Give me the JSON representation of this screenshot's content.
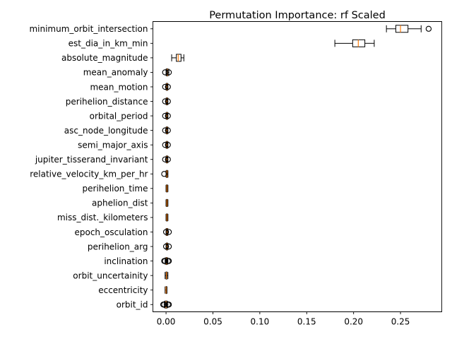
{
  "chart_data": {
    "type": "box",
    "orientation": "horizontal",
    "title": "Permutation Importance: rf Scaled",
    "xlabel": "",
    "ylabel": "",
    "xlim": [
      -0.014,
      0.294
    ],
    "xticks": [
      0.0,
      0.05,
      0.1,
      0.15,
      0.2,
      0.25
    ],
    "xtick_labels": [
      "0.00",
      "0.05",
      "0.10",
      "0.15",
      "0.20",
      "0.25"
    ],
    "grid": false,
    "series": [
      {
        "feature": "minimum_orbit_intersection",
        "whislo": 0.235,
        "q1": 0.245,
        "med": 0.25,
        "q3": 0.258,
        "whishi": 0.272,
        "fliers": [
          0.28
        ]
      },
      {
        "feature": "est_dia_in_km_min",
        "whislo": 0.18,
        "q1": 0.199,
        "med": 0.205,
        "q3": 0.212,
        "whishi": 0.222,
        "fliers": []
      },
      {
        "feature": "absolute_magnitude",
        "whislo": 0.006,
        "q1": 0.011,
        "med": 0.013,
        "q3": 0.016,
        "whishi": 0.019,
        "fliers": []
      },
      {
        "feature": "mean_anomaly",
        "whislo": 0.0,
        "q1": 0.0005,
        "med": 0.0015,
        "q3": 0.002,
        "whishi": 0.003,
        "fliers": [
          -0.001,
          0.003
        ]
      },
      {
        "feature": "mean_motion",
        "whislo": 0.0,
        "q1": 0.0005,
        "med": 0.001,
        "q3": 0.0015,
        "whishi": 0.002,
        "fliers": [
          -0.001,
          0.002
        ]
      },
      {
        "feature": "perihelion_distance",
        "whislo": 0.0,
        "q1": 0.0005,
        "med": 0.001,
        "q3": 0.0015,
        "whishi": 0.002,
        "fliers": [
          -0.001,
          0.002
        ]
      },
      {
        "feature": "orbital_period",
        "whislo": 0.0,
        "q1": 0.0005,
        "med": 0.001,
        "q3": 0.0015,
        "whishi": 0.002,
        "fliers": [
          -0.001,
          0.002
        ]
      },
      {
        "feature": "asc_node_longitude",
        "whislo": 0.0,
        "q1": 0.0005,
        "med": 0.001,
        "q3": 0.0015,
        "whishi": 0.002,
        "fliers": [
          -0.001,
          0.002
        ]
      },
      {
        "feature": "semi_major_axis",
        "whislo": 0.0,
        "q1": 0.0005,
        "med": 0.001,
        "q3": 0.0015,
        "whishi": 0.002,
        "fliers": [
          -0.001,
          0.002
        ]
      },
      {
        "feature": "jupiter_tisserand_invariant",
        "whislo": 0.0,
        "q1": 0.0005,
        "med": 0.001,
        "q3": 0.0015,
        "whishi": 0.002,
        "fliers": [
          -0.001,
          0.002
        ]
      },
      {
        "feature": "relative_velocity_km_per_hr",
        "whislo": 0.0,
        "q1": 0.0005,
        "med": 0.001,
        "q3": 0.0015,
        "whishi": 0.002,
        "fliers": [
          -0.002
        ]
      },
      {
        "feature": "perihelion_time",
        "whislo": 0.0,
        "q1": 0.0005,
        "med": 0.001,
        "q3": 0.0015,
        "whishi": 0.002,
        "fliers": []
      },
      {
        "feature": "aphelion_dist",
        "whislo": 0.0,
        "q1": 0.0005,
        "med": 0.001,
        "q3": 0.0015,
        "whishi": 0.002,
        "fliers": []
      },
      {
        "feature": "miss_dist._kilometers",
        "whislo": 0.0,
        "q1": 0.0005,
        "med": 0.001,
        "q3": 0.0015,
        "whishi": 0.002,
        "fliers": []
      },
      {
        "feature": "epoch_osculation",
        "whislo": 0.0,
        "q1": 0.0005,
        "med": 0.001,
        "q3": 0.0015,
        "whishi": 0.002,
        "fliers": [
          0.0,
          0.003
        ]
      },
      {
        "feature": "perihelion_arg",
        "whislo": 0.0,
        "q1": 0.0005,
        "med": 0.001,
        "q3": 0.0015,
        "whishi": 0.002,
        "fliers": [
          0.0,
          0.003
        ]
      },
      {
        "feature": "inclination",
        "whislo": -0.001,
        "q1": 0.0,
        "med": 0.0005,
        "q3": 0.001,
        "whishi": 0.002,
        "fliers": [
          -0.002,
          -0.001,
          0.002,
          0.003
        ]
      },
      {
        "feature": "orbit_uncertainity",
        "whislo": -0.001,
        "q1": 0.0,
        "med": 0.0005,
        "q3": 0.001,
        "whishi": 0.002,
        "fliers": []
      },
      {
        "feature": "eccentricity",
        "whislo": -0.001,
        "q1": 0.0,
        "med": 0.0,
        "q3": 0.0005,
        "whishi": 0.001,
        "fliers": []
      },
      {
        "feature": "orbit_id",
        "whislo": -0.002,
        "q1": -0.001,
        "med": 0.0,
        "q3": 0.001,
        "whishi": 0.002,
        "fliers": [
          -0.003,
          -0.002,
          0.002,
          0.003
        ]
      }
    ]
  }
}
